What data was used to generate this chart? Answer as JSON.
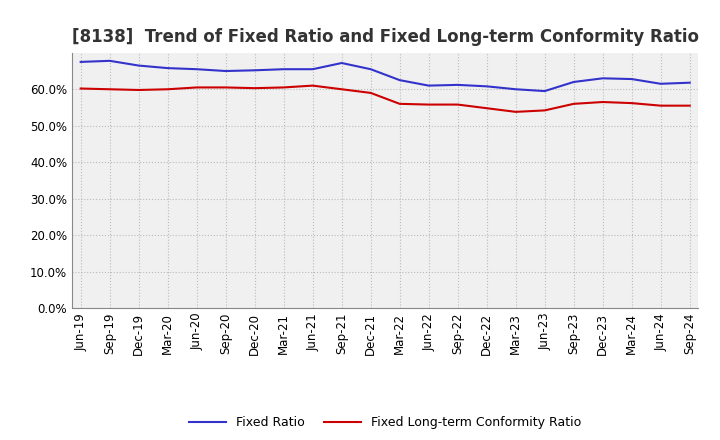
{
  "title": "[8138]  Trend of Fixed Ratio and Fixed Long-term Conformity Ratio",
  "x_labels": [
    "Jun-19",
    "Sep-19",
    "Dec-19",
    "Mar-20",
    "Jun-20",
    "Sep-20",
    "Dec-20",
    "Mar-21",
    "Jun-21",
    "Sep-21",
    "Dec-21",
    "Mar-22",
    "Jun-22",
    "Sep-22",
    "Dec-22",
    "Mar-23",
    "Jun-23",
    "Sep-23",
    "Dec-23",
    "Mar-24",
    "Jun-24",
    "Sep-24"
  ],
  "fixed_ratio": [
    67.5,
    67.8,
    66.5,
    65.8,
    65.5,
    65.0,
    65.2,
    65.5,
    65.5,
    67.2,
    65.5,
    62.5,
    61.0,
    61.2,
    60.8,
    60.0,
    59.5,
    62.0,
    63.0,
    62.8,
    61.5,
    61.8
  ],
  "fixed_lt_ratio": [
    60.2,
    60.0,
    59.8,
    60.0,
    60.5,
    60.5,
    60.3,
    60.5,
    61.0,
    60.0,
    59.0,
    56.0,
    55.8,
    55.8,
    54.8,
    53.8,
    54.2,
    56.0,
    56.5,
    56.2,
    55.5,
    55.5
  ],
  "blue_color": "#3333CC",
  "red_color": "#CC0000",
  "ylim_min": 0,
  "ylim_max": 70,
  "yticks": [
    0,
    10,
    20,
    30,
    40,
    50,
    60
  ],
  "ytick_labels": [
    "0.0%",
    "10.0%",
    "20.0%",
    "30.0%",
    "40.0%",
    "50.0%",
    "60.0%"
  ],
  "grid_color": "#bbbbbb",
  "plot_bg_color": "#f0f0f0",
  "fig_bg_color": "#ffffff",
  "legend_fixed": "Fixed Ratio",
  "legend_lt": "Fixed Long-term Conformity Ratio",
  "title_fontsize": 12,
  "axis_fontsize": 8.5,
  "legend_fontsize": 9
}
